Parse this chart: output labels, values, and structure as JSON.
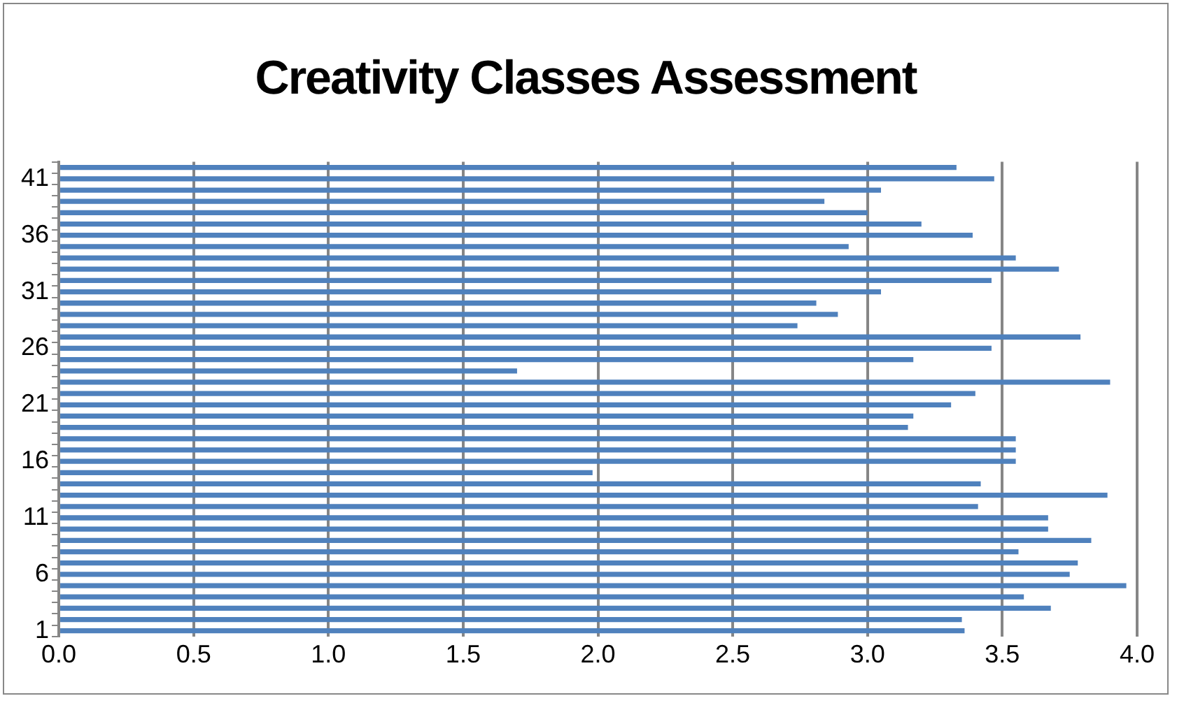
{
  "chart_data": {
    "type": "bar",
    "orientation": "horizontal",
    "title": "Creativity Classes Assessment",
    "categories": [
      null,
      "41",
      null,
      null,
      null,
      null,
      "36",
      null,
      null,
      null,
      null,
      "31",
      null,
      null,
      null,
      null,
      "26",
      null,
      null,
      null,
      null,
      "21",
      null,
      null,
      null,
      null,
      "16",
      null,
      null,
      null,
      null,
      "11",
      null,
      null,
      null,
      null,
      "6",
      null,
      null,
      null,
      null,
      "1"
    ],
    "values": [
      3.33,
      3.47,
      3.05,
      2.84,
      3.0,
      3.2,
      3.39,
      2.93,
      3.55,
      3.71,
      3.46,
      3.05,
      2.81,
      2.89,
      2.74,
      3.79,
      3.46,
      3.17,
      1.7,
      3.9,
      3.4,
      3.31,
      3.17,
      3.15,
      3.55,
      3.55,
      3.55,
      1.98,
      3.42,
      3.89,
      3.41,
      3.67,
      3.67,
      3.83,
      3.56,
      3.78,
      3.75,
      3.96,
      3.58,
      3.68,
      3.35,
      3.36
    ],
    "color": "#4f81bd",
    "xlim": [
      0,
      4
    ],
    "xticks": [
      {
        "value": 0,
        "label": "0.0"
      },
      {
        "value": 0.5,
        "label": "0.5"
      },
      {
        "value": 1,
        "label": "1.0"
      },
      {
        "value": 1.5,
        "label": "1.5"
      },
      {
        "value": 2,
        "label": "2.0"
      },
      {
        "value": 2.5,
        "label": "2.5"
      },
      {
        "value": 3,
        "label": "3.0"
      },
      {
        "value": 3.5,
        "label": "3.5"
      },
      {
        "value": 4,
        "label": "4.0"
      }
    ],
    "grid": "x",
    "legend": false
  }
}
